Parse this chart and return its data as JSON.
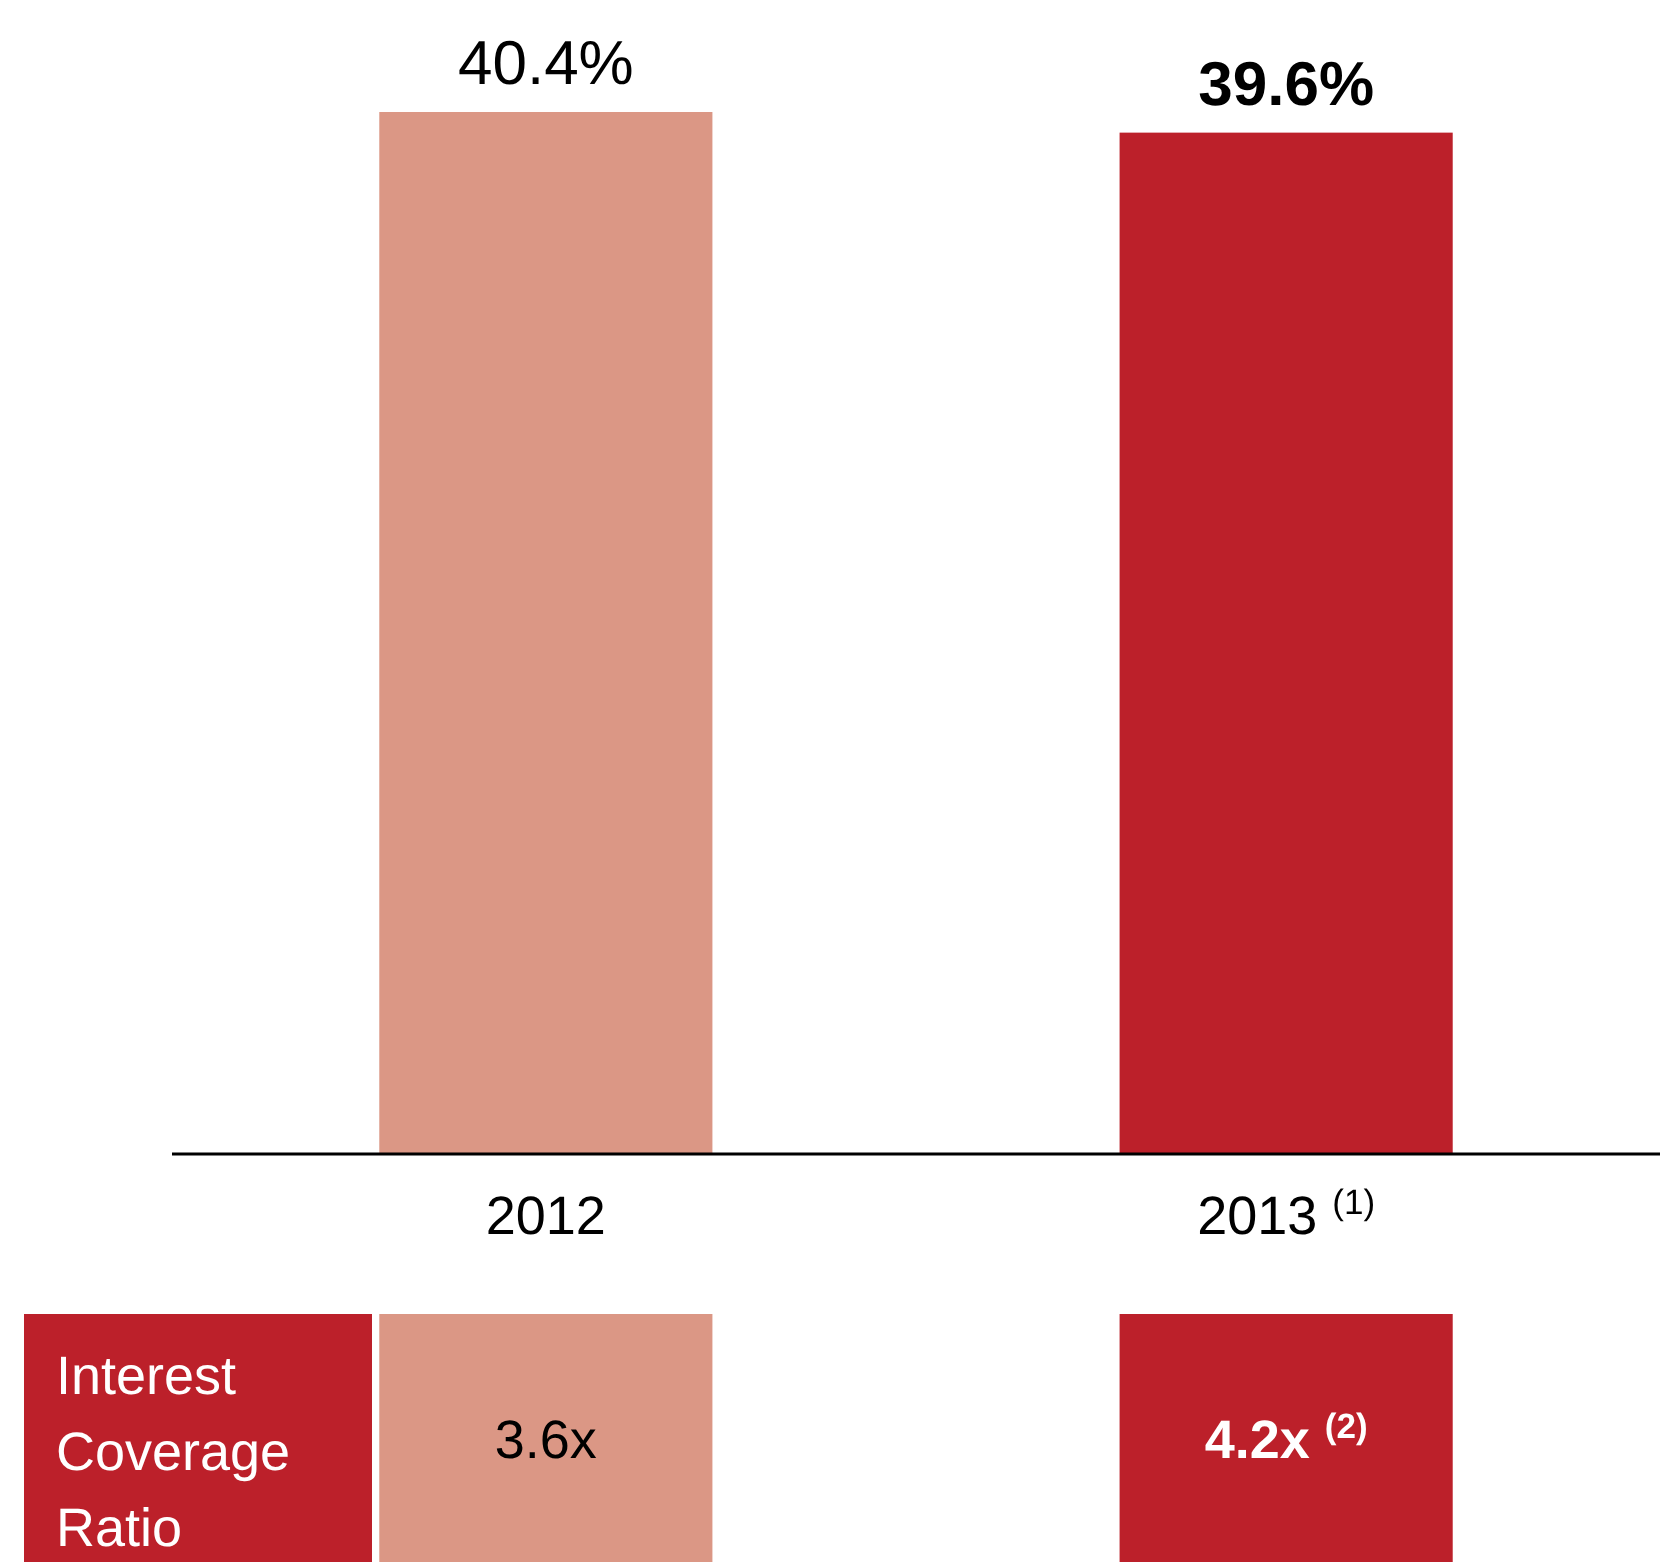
{
  "chart_data": {
    "type": "bar",
    "categories": [
      "2012",
      "2013 $^{(1)}$"
    ],
    "values": [
      40.4,
      39.6
    ],
    "colors": [
      "#db9785",
      "#bc202a"
    ],
    "value_labels": [
      "40.4%",
      "39.6%"
    ],
    "annotations": [
      "Interest Coverage Ratio",
      "3.6x",
      "4.2x $^{(2)}$"
    ]
  }
}
